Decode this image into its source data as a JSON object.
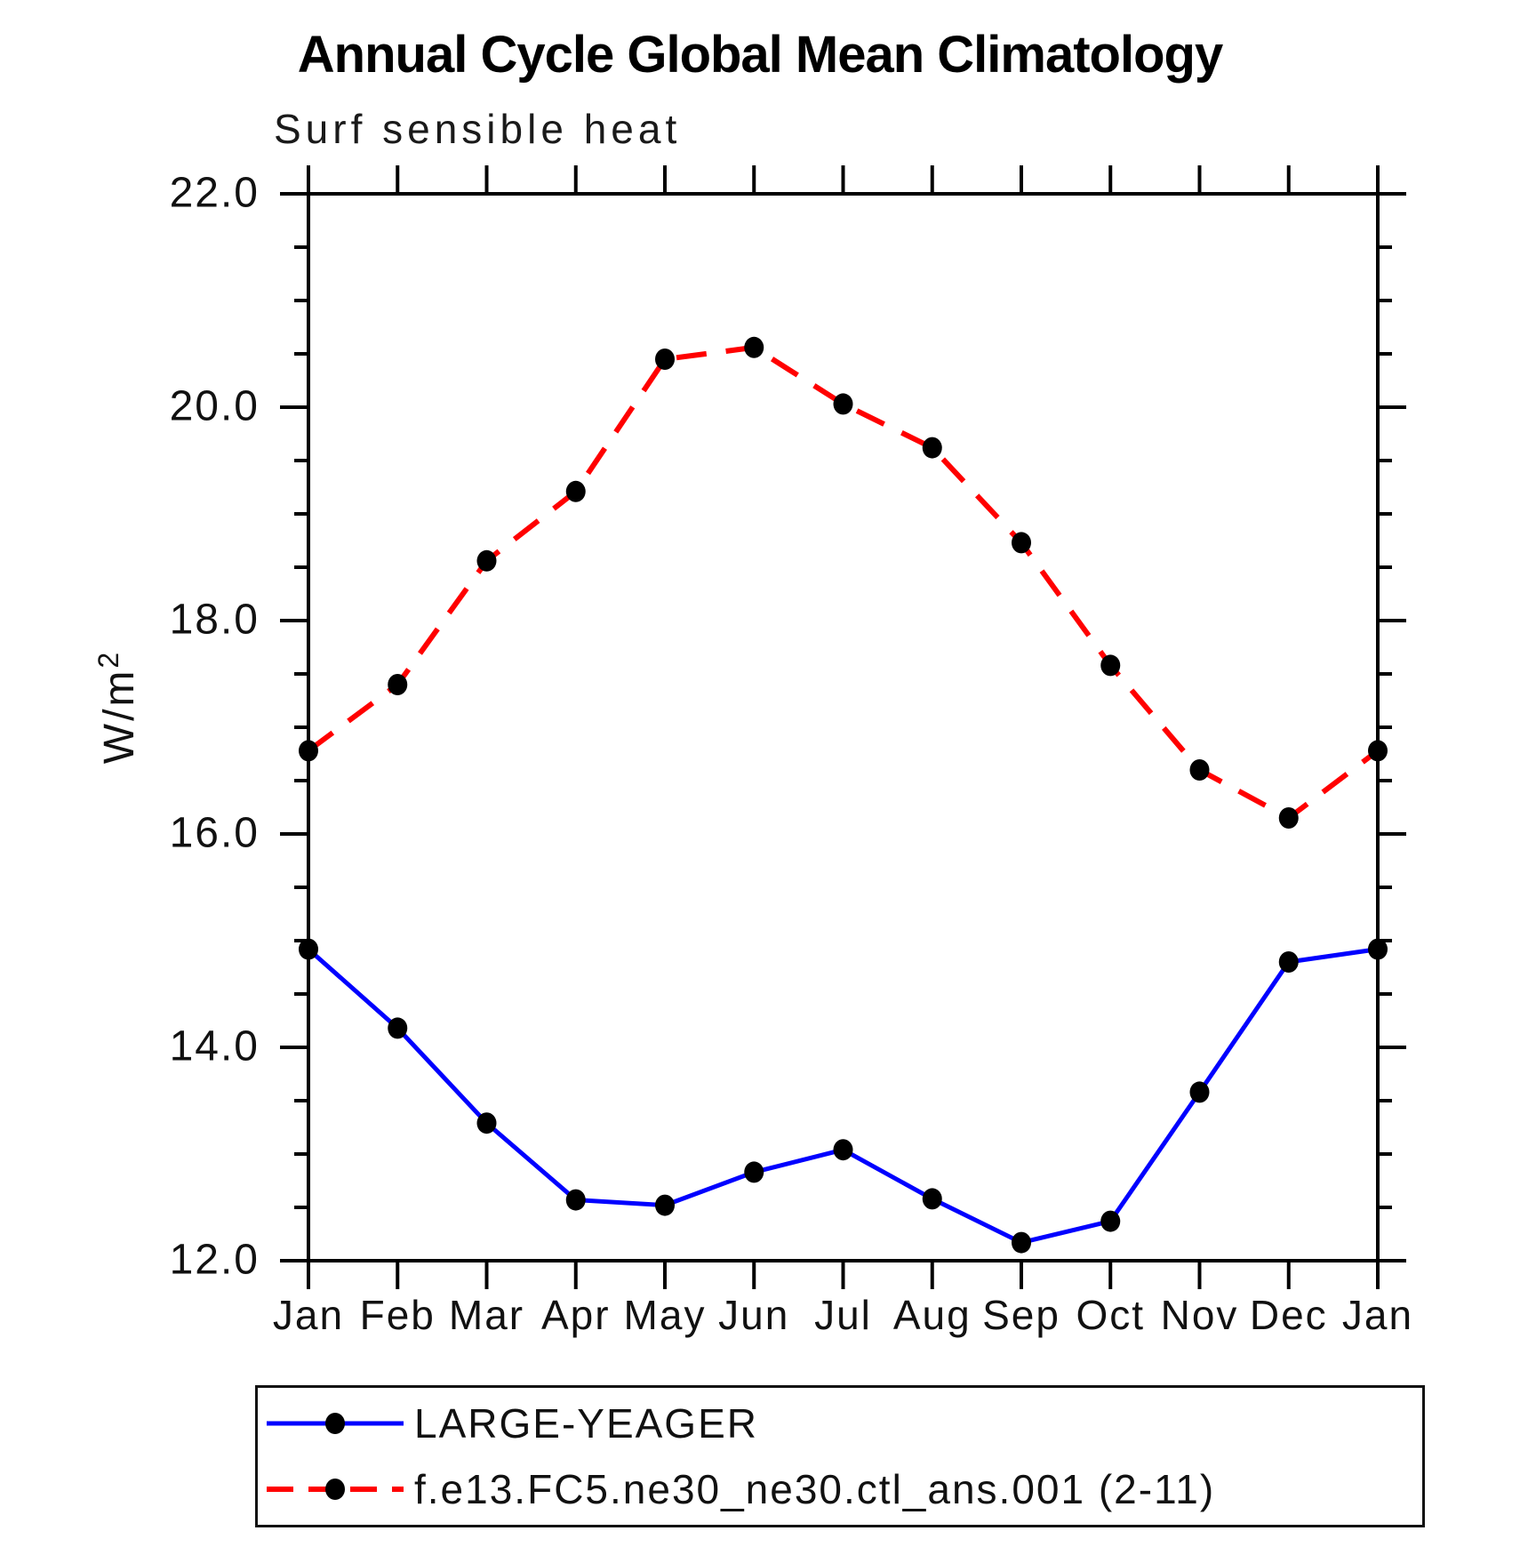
{
  "title": "Annual Cycle Global Mean Climatology",
  "subtitle": "Surf sensible heat",
  "y_axis": {
    "unit_base": "W/m",
    "unit_sup": "2"
  },
  "chart_data": {
    "type": "line",
    "title": "Annual Cycle Global Mean Climatology",
    "subtitle": "Surf sensible heat",
    "ylabel": "W/m2",
    "xlabel": "",
    "categories": [
      "Jan",
      "Feb",
      "Mar",
      "Apr",
      "May",
      "Jun",
      "Jul",
      "Aug",
      "Sep",
      "Oct",
      "Nov",
      "Dec",
      "Jan"
    ],
    "ylim": [
      12.0,
      22.0
    ],
    "ytick_major_values": [
      22.0,
      20.0,
      18.0,
      16.0,
      14.0,
      12.0
    ],
    "ytick_major_labels": [
      "22.0",
      "20.0",
      "18.0",
      "16.0",
      "14.0",
      "12.0"
    ],
    "ytick_minor_step": 0.5,
    "grid": "off",
    "legend_position": "bottom",
    "frame_color": "#000000",
    "marker_color": "#000000",
    "series": [
      {
        "name": "LARGE-YEAGER",
        "color": "#0000ff",
        "style": "solid",
        "marker": "filled-circle",
        "values": [
          14.92,
          14.18,
          13.29,
          12.57,
          12.52,
          12.83,
          13.04,
          12.58,
          12.17,
          12.37,
          13.58,
          14.8,
          14.92
        ]
      },
      {
        "name": "f.e13.FC5.ne30_ne30.ctl_ans.001 (2-11)",
        "color": "#ff0000",
        "style": "dashed",
        "marker": "filled-circle",
        "values": [
          16.78,
          17.4,
          18.56,
          19.21,
          20.45,
          20.56,
          20.03,
          19.62,
          18.73,
          17.58,
          16.6,
          16.15,
          16.78
        ]
      }
    ]
  }
}
